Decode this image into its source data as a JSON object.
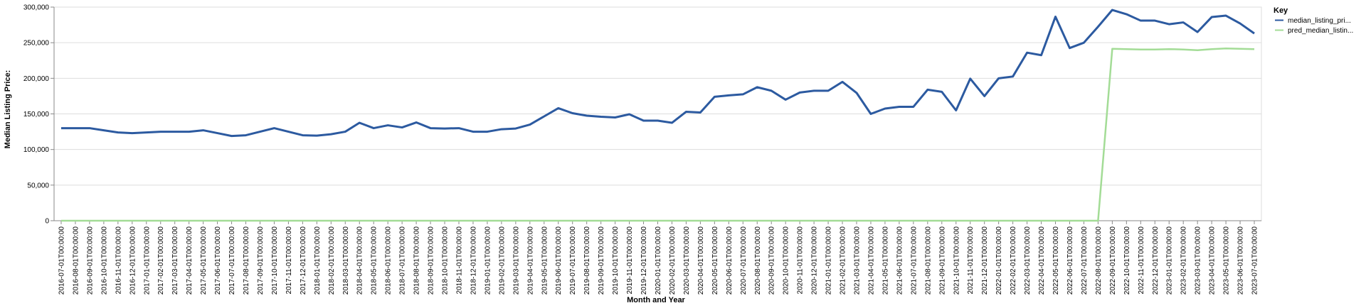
{
  "chart_data": {
    "type": "line",
    "xlabel": "Month and Year",
    "ylabel": "Median Listing Price:",
    "ylim": [
      0,
      300000
    ],
    "yticks": [
      "0",
      "50,000",
      "100,000",
      "150,000",
      "200,000",
      "250,000",
      "300,000"
    ],
    "grid": true,
    "legend": {
      "title": "Key",
      "placement": "right"
    },
    "x": [
      "2016-07-01T00:00:00",
      "2016-08-01T00:00:00",
      "2016-09-01T00:00:00",
      "2016-10-01T00:00:00",
      "2016-11-01T00:00:00",
      "2016-12-01T00:00:00",
      "2017-01-01T00:00:00",
      "2017-02-01T00:00:00",
      "2017-03-01T00:00:00",
      "2017-04-01T00:00:00",
      "2017-05-01T00:00:00",
      "2017-06-01T00:00:00",
      "2017-07-01T00:00:00",
      "2017-08-01T00:00:00",
      "2017-09-01T00:00:00",
      "2017-10-01T00:00:00",
      "2017-11-01T00:00:00",
      "2017-12-01T00:00:00",
      "2018-01-01T00:00:00",
      "2018-02-01T00:00:00",
      "2018-03-01T00:00:00",
      "2018-04-01T00:00:00",
      "2018-05-01T00:00:00",
      "2018-06-01T00:00:00",
      "2018-07-01T00:00:00",
      "2018-08-01T00:00:00",
      "2018-09-01T00:00:00",
      "2018-10-01T00:00:00",
      "2018-11-01T00:00:00",
      "2018-12-01T00:00:00",
      "2019-01-01T00:00:00",
      "2019-02-01T00:00:00",
      "2019-03-01T00:00:00",
      "2019-04-01T00:00:00",
      "2019-05-01T00:00:00",
      "2019-06-01T00:00:00",
      "2019-07-01T00:00:00",
      "2019-08-01T00:00:00",
      "2019-09-01T00:00:00",
      "2019-10-01T00:00:00",
      "2019-11-01T00:00:00",
      "2019-12-01T00:00:00",
      "2020-01-01T00:00:00",
      "2020-02-01T00:00:00",
      "2020-03-01T00:00:00",
      "2020-04-01T00:00:00",
      "2020-05-01T00:00:00",
      "2020-06-01T00:00:00",
      "2020-07-01T00:00:00",
      "2020-08-01T00:00:00",
      "2020-09-01T00:00:00",
      "2020-10-01T00:00:00",
      "2020-11-01T00:00:00",
      "2020-12-01T00:00:00",
      "2021-01-01T00:00:00",
      "2021-02-01T00:00:00",
      "2021-03-01T00:00:00",
      "2021-04-01T00:00:00",
      "2021-05-01T00:00:00",
      "2021-06-01T00:00:00",
      "2021-07-01T00:00:00",
      "2021-08-01T00:00:00",
      "2021-09-01T00:00:00",
      "2021-10-01T00:00:00",
      "2021-11-01T00:00:00",
      "2021-12-01T00:00:00",
      "2022-01-01T00:00:00",
      "2022-02-01T00:00:00",
      "2022-03-01T00:00:00",
      "2022-04-01T00:00:00",
      "2022-05-01T00:00:00",
      "2022-06-01T00:00:00",
      "2022-07-01T00:00:00",
      "2022-08-01T00:00:00",
      "2022-09-01T00:00:00",
      "2022-10-01T00:00:00",
      "2022-11-01T00:00:00",
      "2022-12-01T00:00:00",
      "2023-01-01T00:00:00",
      "2023-02-01T00:00:00",
      "2023-03-01T00:00:00",
      "2023-04-01T00:00:00",
      "2023-05-01T00:00:00",
      "2023-06-01T00:00:00",
      "2023-07-01T00:00:00"
    ],
    "series": [
      {
        "name": "median_listing_pri...",
        "color": "#2c5aa0",
        "values": [
          130000,
          130000,
          130000,
          127000,
          124000,
          123000,
          124000,
          125000,
          125000,
          125000,
          127000,
          123000,
          119000,
          120000,
          125000,
          130000,
          125000,
          120000,
          119500,
          121500,
          125000,
          137500,
          130000,
          134000,
          131000,
          138000,
          130000,
          129500,
          130000,
          125000,
          125000,
          128500,
          129500,
          135000,
          146500,
          158000,
          151000,
          147500,
          146000,
          145000,
          149500,
          140500,
          140500,
          137500,
          153000,
          152000,
          174000,
          176000,
          177500,
          187500,
          182500,
          170000,
          180000,
          182500,
          182500,
          195000,
          179500,
          150000,
          157500,
          160000,
          160000,
          184000,
          181000,
          155000,
          199500,
          175000,
          200000,
          202500,
          236000,
          232500,
          286500,
          242500,
          250000,
          272500,
          296000,
          290000,
          281000,
          281000,
          276000,
          278500,
          265000,
          286000,
          288000,
          277000,
          263000
        ]
      },
      {
        "name": "pred_median_listin...",
        "color": "#a3dc96",
        "values": [
          0,
          0,
          0,
          0,
          0,
          0,
          0,
          0,
          0,
          0,
          0,
          0,
          0,
          0,
          0,
          0,
          0,
          0,
          0,
          0,
          0,
          0,
          0,
          0,
          0,
          0,
          0,
          0,
          0,
          0,
          0,
          0,
          0,
          0,
          0,
          0,
          0,
          0,
          0,
          0,
          0,
          0,
          0,
          0,
          0,
          0,
          0,
          0,
          0,
          0,
          0,
          0,
          0,
          0,
          0,
          0,
          0,
          0,
          0,
          0,
          0,
          0,
          0,
          0,
          0,
          0,
          0,
          0,
          0,
          0,
          0,
          0,
          0,
          0,
          241500,
          241000,
          240500,
          240500,
          241000,
          240500,
          239500,
          241000,
          242000,
          241500,
          241000
        ]
      }
    ]
  }
}
